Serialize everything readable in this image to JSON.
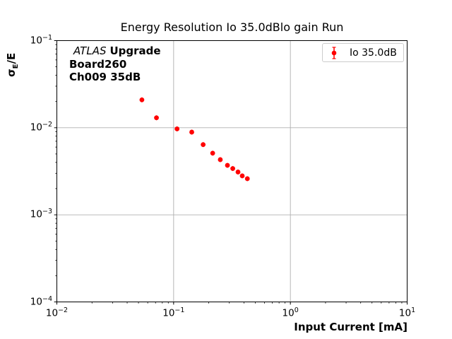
{
  "figure": {
    "background": "#ffffff"
  },
  "chart_data": {
    "type": "scatter",
    "title": "Energy Resolution Io 35.0dBlo gain Run",
    "xlabel": "Input Current [mA]",
    "ylabel": "σE/E",
    "xscale": "log",
    "yscale": "log",
    "xlim": [
      0.01,
      10
    ],
    "ylim": [
      0.0001,
      0.1
    ],
    "grid": true,
    "legend_position": "upper right",
    "tick_base": "10",
    "xticks": [
      {
        "value": 0.01,
        "exp": "−2"
      },
      {
        "value": 0.1,
        "exp": "−1"
      },
      {
        "value": 1,
        "exp": "0"
      },
      {
        "value": 10,
        "exp": "1"
      }
    ],
    "yticks": [
      {
        "value": 0.0001,
        "exp": "−4"
      },
      {
        "value": 0.001,
        "exp": "−3"
      },
      {
        "value": 0.01,
        "exp": "−2"
      },
      {
        "value": 0.1,
        "exp": "−1"
      }
    ],
    "series": [
      {
        "name": "Io 35.0dB",
        "color": "#ff0000",
        "marker": "circle-errorbar",
        "x": [
          0.0535,
          0.0713,
          0.107,
          0.143,
          0.179,
          0.216,
          0.251,
          0.289,
          0.321,
          0.356,
          0.387,
          0.428
        ],
        "y": [
          0.0209,
          0.013,
          0.0097,
          0.0089,
          0.0064,
          0.0051,
          0.0043,
          0.0037,
          0.0034,
          0.0031,
          0.0028,
          0.0026
        ]
      }
    ]
  },
  "axes": {
    "ylabel_sigma": "σ",
    "ylabel_sub": "E",
    "ylabel_rest": "/E"
  },
  "annotation": {
    "atlas": "ATLAS",
    "upgrade": "Upgrade",
    "line2": "Board260",
    "line3": "Ch009 35dB"
  },
  "legend": {
    "label": "Io 35.0dB"
  },
  "colors": {
    "grid": "#b0b0b0",
    "spine": "#000000",
    "marker": "#ff0000",
    "legend_border": "#cccccc"
  }
}
